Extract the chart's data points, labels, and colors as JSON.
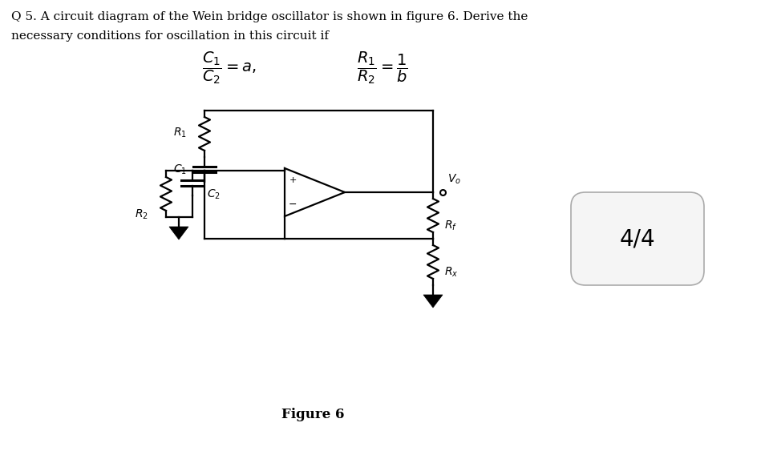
{
  "title_line1": "Q 5. A circuit diagram of the Wein bridge oscillator is shown in figure 6. Derive the",
  "title_line2": "necessary conditions for oscillation in this circuit if",
  "formula1": "$\\dfrac{C_1}{C_2} = a,$",
  "formula2": "$\\dfrac{R_1}{R_2} = \\dfrac{1}{b}$",
  "figure_label": "Figure 6",
  "score_text": "4/4",
  "bg_color": "#ffffff",
  "lc": "#000000",
  "tc": "#000000",
  "badge_bg": "#f5f5f5",
  "badge_edge": "#aaaaaa"
}
